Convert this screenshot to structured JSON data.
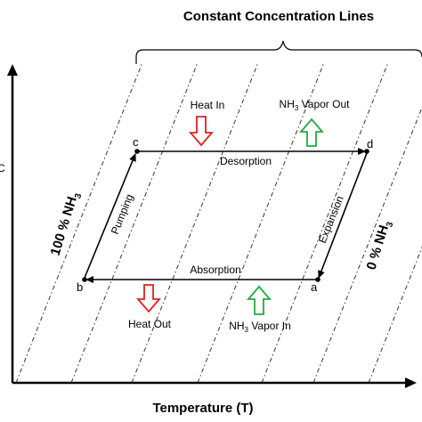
{
  "title": "Constant Concentration Lines",
  "x_axis_label": "Temperature (T)",
  "y_axis_label_partial": "C",
  "left_concentration": {
    "value": "100 % NH",
    "sub": "3"
  },
  "right_concentration": {
    "value": "0 % NH",
    "sub": "3"
  },
  "points": {
    "a": "a",
    "b": "b",
    "c": "c",
    "d": "d"
  },
  "processes": {
    "top": "Desorption",
    "bottom": "Absorption",
    "left": "Pumping",
    "right": "Expansion"
  },
  "heat_in": "Heat In",
  "heat_out": "Heat Out",
  "vapor_out": {
    "prefix": "NH",
    "sub": "3",
    "suffix": " Vapor Out"
  },
  "vapor_in": {
    "prefix": "NH",
    "sub": "3",
    "suffix": " Vapor In"
  },
  "colors": {
    "heat_arrow": "#e02020",
    "vapor_arrow": "#22aa44",
    "lines": "#000000"
  }
}
